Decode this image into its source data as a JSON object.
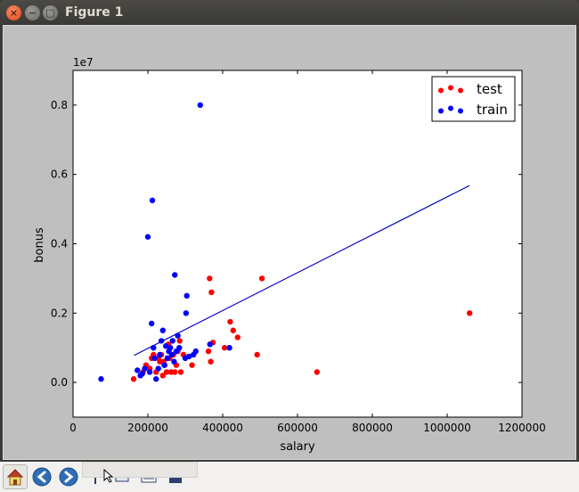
{
  "window": {
    "title": "Figure 1",
    "close_glyph": "×",
    "minimize_glyph": "−",
    "maximize_glyph": "□"
  },
  "toolbar": {
    "buttons": [
      "home-icon",
      "back-arrow-icon",
      "forward-arrow-icon",
      "pan-icon",
      "zoom-icon",
      "subplots-icon",
      "save-icon"
    ]
  },
  "chart_data": {
    "type": "scatter",
    "xlabel": "salary",
    "ylabel": "bonus",
    "y_offset_label": "1e7",
    "xlim": [
      0,
      1200000
    ],
    "ylim": [
      -1000000,
      9000000
    ],
    "xticks": [
      0,
      200000,
      400000,
      600000,
      800000,
      1000000,
      1200000
    ],
    "xtick_labels": [
      "0",
      "200000",
      "400000",
      "600000",
      "800000",
      "1000000",
      "1200000"
    ],
    "yticks": [
      0,
      2000000,
      4000000,
      6000000,
      8000000
    ],
    "ytick_labels": [
      "0.0",
      "0.2",
      "0.4",
      "0.6",
      "0.8"
    ],
    "grid": false,
    "legend": "top-right",
    "series": [
      {
        "name": "test",
        "color": "#ff0000",
        "points": [
          [
            162000,
            100000
          ],
          [
            187000,
            300000
          ],
          [
            195000,
            500000
          ],
          [
            205000,
            400000
          ],
          [
            210000,
            700000
          ],
          [
            215000,
            800000
          ],
          [
            222000,
            300000
          ],
          [
            228000,
            700000
          ],
          [
            232000,
            600000
          ],
          [
            236000,
            800000
          ],
          [
            240000,
            200000
          ],
          [
            242000,
            600000
          ],
          [
            245000,
            500000
          ],
          [
            250000,
            300000
          ],
          [
            255000,
            1100000
          ],
          [
            258000,
            700000
          ],
          [
            262000,
            300000
          ],
          [
            268000,
            800000
          ],
          [
            272000,
            300000
          ],
          [
            276000,
            500000
          ],
          [
            280000,
            900000
          ],
          [
            285000,
            1200000
          ],
          [
            288000,
            300000
          ],
          [
            295000,
            800000
          ],
          [
            318000,
            500000
          ],
          [
            362000,
            900000
          ],
          [
            365000,
            3000000
          ],
          [
            368000,
            600000
          ],
          [
            370000,
            2600000
          ],
          [
            374000,
            1150000
          ],
          [
            405000,
            1000000
          ],
          [
            420000,
            1750000
          ],
          [
            428000,
            1500000
          ],
          [
            440000,
            1300000
          ],
          [
            492000,
            800000
          ],
          [
            505000,
            3000000
          ],
          [
            652000,
            300000
          ],
          [
            1060000,
            2000000
          ]
        ]
      },
      {
        "name": "train",
        "color": "#0000ff",
        "points": [
          [
            75000,
            100000
          ],
          [
            172000,
            350000
          ],
          [
            180000,
            200000
          ],
          [
            185000,
            250000
          ],
          [
            192000,
            400000
          ],
          [
            200000,
            4200000
          ],
          [
            205000,
            300000
          ],
          [
            210000,
            1700000
          ],
          [
            212000,
            5250000
          ],
          [
            215000,
            1000000
          ],
          [
            218000,
            700000
          ],
          [
            222000,
            100000
          ],
          [
            228000,
            400000
          ],
          [
            232000,
            800000
          ],
          [
            236000,
            1200000
          ],
          [
            240000,
            1500000
          ],
          [
            244000,
            500000
          ],
          [
            248000,
            1050000
          ],
          [
            252000,
            700000
          ],
          [
            256000,
            900000
          ],
          [
            260000,
            1000000
          ],
          [
            264000,
            800000
          ],
          [
            266000,
            1200000
          ],
          [
            270000,
            600000
          ],
          [
            272000,
            3100000
          ],
          [
            276000,
            900000
          ],
          [
            280000,
            1350000
          ],
          [
            284000,
            1000000
          ],
          [
            300000,
            700000
          ],
          [
            302000,
            2000000
          ],
          [
            304000,
            2500000
          ],
          [
            310000,
            750000
          ],
          [
            322000,
            800000
          ],
          [
            328000,
            900000
          ],
          [
            340000,
            8000000
          ],
          [
            366000,
            1100000
          ],
          [
            418000,
            1000000
          ]
        ]
      }
    ],
    "regression_line": {
      "color": "#0000cc",
      "from": [
        163000,
        780000
      ],
      "to": [
        1060000,
        5680000
      ]
    }
  }
}
